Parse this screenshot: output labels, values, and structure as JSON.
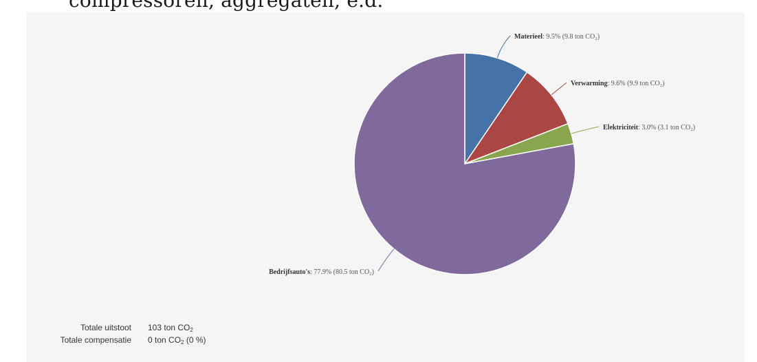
{
  "header": {
    "clipped_text": "compressoren, aggregaten, e.d."
  },
  "chart_data": {
    "type": "pie",
    "title": "",
    "slices": [
      {
        "name": "Materieel",
        "percent": 9.5,
        "value_label": "9.5% (9.8 ton CO₂)",
        "tons": 9.8,
        "color": "#4572a7"
      },
      {
        "name": "Verwarming",
        "percent": 9.6,
        "value_label": "9.6% (9.9 ton CO₂)",
        "tons": 9.9,
        "color": "#aa4643"
      },
      {
        "name": "Elektriciteit",
        "percent": 3.0,
        "value_label": "3.0% (3.1 ton CO₂)",
        "tons": 3.1,
        "color": "#89a54e"
      },
      {
        "name": "Bedrijfsauto's",
        "percent": 77.9,
        "value_label": "77.9% (80.5 ton CO₂)",
        "tons": 80.5,
        "color": "#80699b"
      }
    ]
  },
  "summary": {
    "total_emission_label": "Totale uitstoot",
    "total_emission_value": "103 ton CO",
    "total_emission_sub": "2",
    "total_compensation_label": "Totale compensatie",
    "total_compensation_value": "0 ton CO",
    "total_compensation_sub": "2",
    "total_compensation_pct": " (0 %)"
  }
}
